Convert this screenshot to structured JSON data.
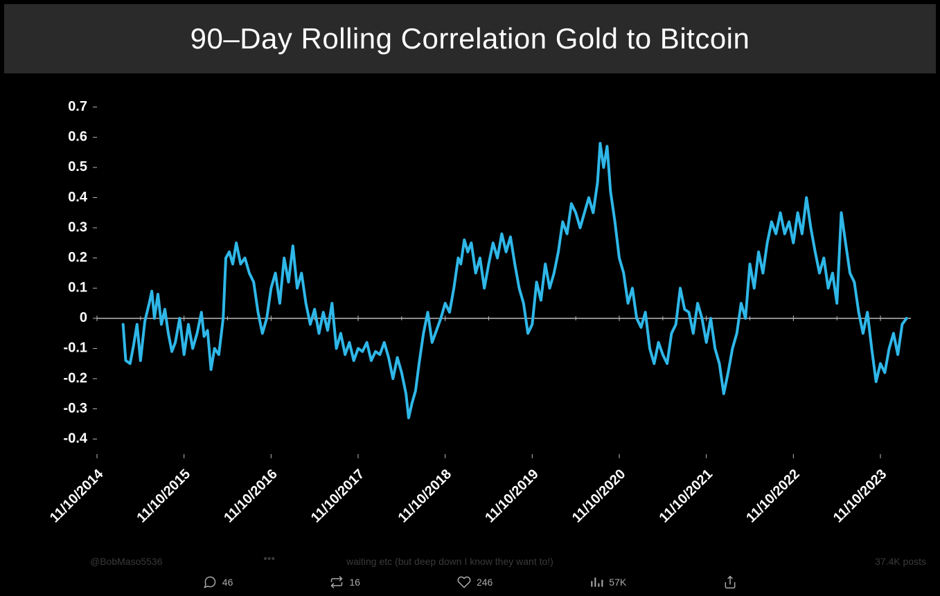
{
  "title": "90–Day Rolling Correlation Gold to Bitcoin",
  "chart": {
    "type": "line",
    "background_color": "#000000",
    "title_bar_color": "#2a2a2a",
    "title_color": "#ffffff",
    "title_fontsize": 42,
    "line_color": "#2fb7e8",
    "line_width": 4,
    "axis_label_color": "#ffffff",
    "axis_label_fontsize": 20,
    "axis_label_fontweight": 700,
    "zero_line_color": "#bbbbbb",
    "y_ticks": [
      -0.4,
      -0.3,
      -0.2,
      -0.1,
      0,
      0.1,
      0.2,
      0.3,
      0.4,
      0.5,
      0.6,
      0.7
    ],
    "y_tick_labels": [
      "-0.4",
      "-0.3",
      "-0.2",
      "-0.1",
      "0",
      "0.1",
      "0.2",
      "0.3",
      "0.4",
      "0.5",
      "0.6",
      "0.7"
    ],
    "ylim": [
      -0.45,
      0.72
    ],
    "x_tick_labels": [
      "11/10/2014",
      "11/10/2015",
      "11/10/2016",
      "11/10/2017",
      "11/10/2018",
      "11/10/2019",
      "11/10/2020",
      "11/10/2021",
      "11/10/2022",
      "11/10/2023"
    ],
    "x_tick_positions": [
      0,
      1,
      2,
      3,
      4,
      5,
      6,
      7,
      8,
      9
    ],
    "xlim": [
      0,
      9.35
    ],
    "series": [
      [
        0.3,
        -0.02
      ],
      [
        0.33,
        -0.14
      ],
      [
        0.38,
        -0.15
      ],
      [
        0.42,
        -0.09
      ],
      [
        0.46,
        -0.02
      ],
      [
        0.5,
        -0.14
      ],
      [
        0.55,
        -0.01
      ],
      [
        0.6,
        0.05
      ],
      [
        0.63,
        0.09
      ],
      [
        0.66,
        0.0
      ],
      [
        0.7,
        0.08
      ],
      [
        0.74,
        -0.02
      ],
      [
        0.78,
        0.03
      ],
      [
        0.82,
        -0.05
      ],
      [
        0.86,
        -0.11
      ],
      [
        0.9,
        -0.08
      ],
      [
        0.95,
        0.0
      ],
      [
        1.0,
        -0.12
      ],
      [
        1.05,
        -0.02
      ],
      [
        1.1,
        -0.1
      ],
      [
        1.15,
        -0.05
      ],
      [
        1.2,
        0.02
      ],
      [
        1.23,
        -0.06
      ],
      [
        1.27,
        -0.04
      ],
      [
        1.31,
        -0.17
      ],
      [
        1.35,
        -0.1
      ],
      [
        1.4,
        -0.12
      ],
      [
        1.45,
        0.0
      ],
      [
        1.48,
        0.2
      ],
      [
        1.52,
        0.22
      ],
      [
        1.56,
        0.18
      ],
      [
        1.6,
        0.25
      ],
      [
        1.65,
        0.18
      ],
      [
        1.7,
        0.2
      ],
      [
        1.75,
        0.15
      ],
      [
        1.8,
        0.12
      ],
      [
        1.85,
        0.02
      ],
      [
        1.9,
        -0.05
      ],
      [
        1.95,
        0.0
      ],
      [
        2.0,
        0.1
      ],
      [
        2.05,
        0.15
      ],
      [
        2.1,
        0.05
      ],
      [
        2.15,
        0.2
      ],
      [
        2.2,
        0.12
      ],
      [
        2.25,
        0.24
      ],
      [
        2.3,
        0.1
      ],
      [
        2.35,
        0.15
      ],
      [
        2.4,
        0.05
      ],
      [
        2.45,
        -0.02
      ],
      [
        2.5,
        0.03
      ],
      [
        2.55,
        -0.05
      ],
      [
        2.6,
        0.02
      ],
      [
        2.65,
        -0.04
      ],
      [
        2.7,
        0.05
      ],
      [
        2.75,
        -0.1
      ],
      [
        2.8,
        -0.05
      ],
      [
        2.85,
        -0.12
      ],
      [
        2.9,
        -0.08
      ],
      [
        2.95,
        -0.14
      ],
      [
        3.0,
        -0.1
      ],
      [
        3.05,
        -0.11
      ],
      [
        3.1,
        -0.08
      ],
      [
        3.15,
        -0.14
      ],
      [
        3.2,
        -0.11
      ],
      [
        3.25,
        -0.12
      ],
      [
        3.3,
        -0.08
      ],
      [
        3.35,
        -0.13
      ],
      [
        3.4,
        -0.2
      ],
      [
        3.45,
        -0.13
      ],
      [
        3.5,
        -0.18
      ],
      [
        3.55,
        -0.25
      ],
      [
        3.58,
        -0.33
      ],
      [
        3.62,
        -0.28
      ],
      [
        3.66,
        -0.24
      ],
      [
        3.7,
        -0.15
      ],
      [
        3.75,
        -0.05
      ],
      [
        3.8,
        0.02
      ],
      [
        3.85,
        -0.08
      ],
      [
        3.9,
        -0.04
      ],
      [
        3.95,
        0.0
      ],
      [
        4.0,
        0.05
      ],
      [
        4.05,
        0.02
      ],
      [
        4.1,
        0.1
      ],
      [
        4.15,
        0.2
      ],
      [
        4.18,
        0.18
      ],
      [
        4.22,
        0.26
      ],
      [
        4.26,
        0.22
      ],
      [
        4.3,
        0.25
      ],
      [
        4.35,
        0.15
      ],
      [
        4.4,
        0.2
      ],
      [
        4.45,
        0.1
      ],
      [
        4.5,
        0.18
      ],
      [
        4.55,
        0.25
      ],
      [
        4.6,
        0.2
      ],
      [
        4.65,
        0.28
      ],
      [
        4.7,
        0.22
      ],
      [
        4.75,
        0.27
      ],
      [
        4.8,
        0.18
      ],
      [
        4.85,
        0.1
      ],
      [
        4.9,
        0.05
      ],
      [
        4.95,
        -0.05
      ],
      [
        5.0,
        -0.02
      ],
      [
        5.05,
        0.12
      ],
      [
        5.1,
        0.06
      ],
      [
        5.15,
        0.18
      ],
      [
        5.2,
        0.1
      ],
      [
        5.25,
        0.15
      ],
      [
        5.3,
        0.22
      ],
      [
        5.35,
        0.32
      ],
      [
        5.4,
        0.28
      ],
      [
        5.45,
        0.38
      ],
      [
        5.5,
        0.35
      ],
      [
        5.55,
        0.3
      ],
      [
        5.6,
        0.35
      ],
      [
        5.65,
        0.4
      ],
      [
        5.7,
        0.35
      ],
      [
        5.75,
        0.45
      ],
      [
        5.78,
        0.58
      ],
      [
        5.82,
        0.5
      ],
      [
        5.86,
        0.57
      ],
      [
        5.9,
        0.42
      ],
      [
        5.95,
        0.32
      ],
      [
        6.0,
        0.2
      ],
      [
        6.05,
        0.15
      ],
      [
        6.1,
        0.05
      ],
      [
        6.15,
        0.1
      ],
      [
        6.2,
        0.0
      ],
      [
        6.25,
        -0.03
      ],
      [
        6.3,
        0.02
      ],
      [
        6.35,
        -0.1
      ],
      [
        6.4,
        -0.15
      ],
      [
        6.45,
        -0.08
      ],
      [
        6.5,
        -0.12
      ],
      [
        6.55,
        -0.15
      ],
      [
        6.6,
        -0.05
      ],
      [
        6.65,
        -0.02
      ],
      [
        6.7,
        0.1
      ],
      [
        6.75,
        0.03
      ],
      [
        6.8,
        0.02
      ],
      [
        6.85,
        -0.05
      ],
      [
        6.9,
        0.05
      ],
      [
        6.95,
        0.0
      ],
      [
        7.0,
        -0.08
      ],
      [
        7.05,
        0.0
      ],
      [
        7.1,
        -0.1
      ],
      [
        7.15,
        -0.15
      ],
      [
        7.2,
        -0.25
      ],
      [
        7.25,
        -0.18
      ],
      [
        7.3,
        -0.1
      ],
      [
        7.35,
        -0.05
      ],
      [
        7.4,
        0.05
      ],
      [
        7.45,
        0.0
      ],
      [
        7.5,
        0.18
      ],
      [
        7.55,
        0.1
      ],
      [
        7.6,
        0.22
      ],
      [
        7.65,
        0.15
      ],
      [
        7.7,
        0.25
      ],
      [
        7.75,
        0.32
      ],
      [
        7.8,
        0.28
      ],
      [
        7.85,
        0.35
      ],
      [
        7.9,
        0.28
      ],
      [
        7.95,
        0.32
      ],
      [
        8.0,
        0.25
      ],
      [
        8.05,
        0.35
      ],
      [
        8.1,
        0.28
      ],
      [
        8.15,
        0.4
      ],
      [
        8.2,
        0.3
      ],
      [
        8.25,
        0.22
      ],
      [
        8.3,
        0.15
      ],
      [
        8.35,
        0.2
      ],
      [
        8.4,
        0.1
      ],
      [
        8.45,
        0.15
      ],
      [
        8.5,
        0.05
      ],
      [
        8.55,
        0.35
      ],
      [
        8.6,
        0.25
      ],
      [
        8.65,
        0.15
      ],
      [
        8.7,
        0.12
      ],
      [
        8.75,
        0.02
      ],
      [
        8.8,
        -0.05
      ],
      [
        8.85,
        0.02
      ],
      [
        8.9,
        -0.1
      ],
      [
        8.95,
        -0.21
      ],
      [
        9.0,
        -0.15
      ],
      [
        9.05,
        -0.18
      ],
      [
        9.1,
        -0.1
      ],
      [
        9.15,
        -0.05
      ],
      [
        9.2,
        -0.12
      ],
      [
        9.25,
        -0.02
      ],
      [
        9.3,
        0.0
      ]
    ]
  },
  "social": {
    "reply_count": "46",
    "retweet_count": "16",
    "like_count": "246",
    "view_count": "57K",
    "ghost_handle": "@BobMaso5536",
    "ghost_mid": "waiting etc (but deep down I know they want to!)",
    "ghost_right": "37.4K posts",
    "ghost_dots": "•••"
  }
}
